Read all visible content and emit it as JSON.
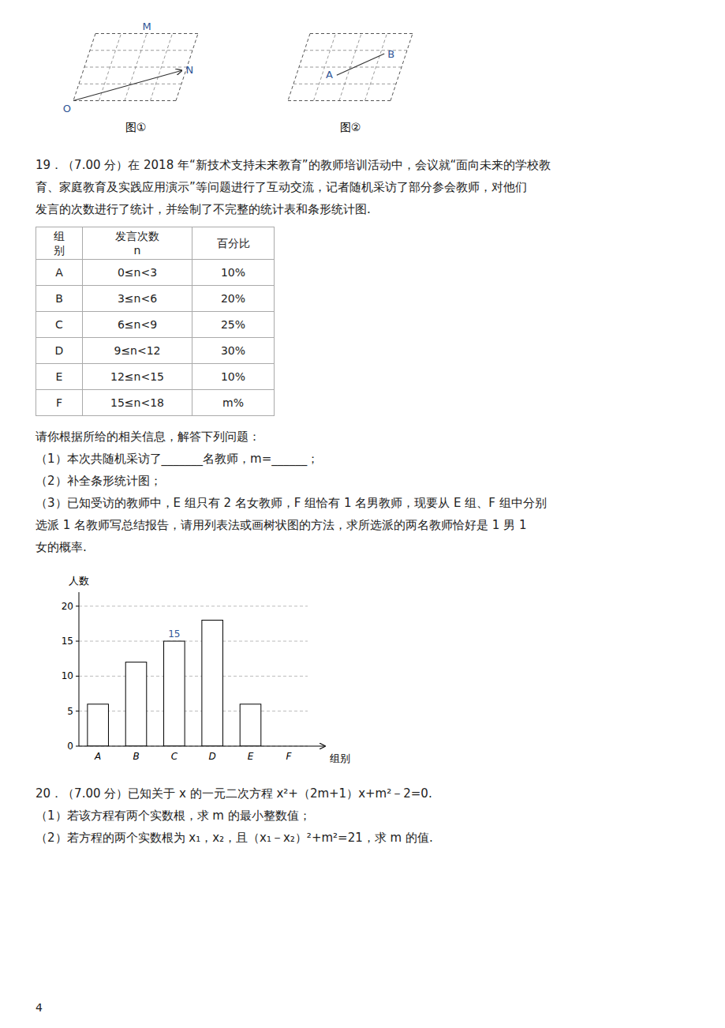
{
  "chart_data": {
    "type": "bar",
    "categories": [
      "A",
      "B",
      "C",
      "D",
      "E",
      "F"
    ],
    "values": [
      6,
      12,
      15,
      18,
      6,
      null
    ],
    "ylim": [
      0,
      22
    ],
    "yticks": [
      0,
      5,
      10,
      15,
      20
    ],
    "grid": true,
    "x_label": "组别",
    "y_label": "人数",
    "annotations": [
      {
        "text": "15",
        "x": "C",
        "y": 15
      }
    ]
  },
  "page": {
    "figures": [
      {
        "caption": "图①",
        "labels": [
          "M",
          "N",
          "O"
        ]
      },
      {
        "caption": "图②",
        "labels": [
          "A",
          "B"
        ]
      }
    ],
    "question_19": [
      "19．（7.00 分）在 2018 年“新技术支持未来教育”的教师培训活动中，会议就“面向未来的学校教",
      "育、家庭教育及实践应用演示”等问题进行了互动交流，记者随机采访了部分参会教师，对他们",
      "发言的次数进行了统计，并绘制了不完整的统计表和条形统计图."
    ],
    "table": {
      "header": [
        [
          "组",
          "别"
        ],
        [
          "发言次数",
          "n"
        ],
        [
          "百分比"
        ]
      ],
      "rows": [
        [
          "A",
          "0≤n<3",
          "10%"
        ],
        [
          "B",
          "3≤n<6",
          "20%"
        ],
        [
          "C",
          "6≤n<9",
          "25%"
        ],
        [
          "D",
          "9≤n<12",
          "30%"
        ],
        [
          "E",
          "12≤n<15",
          "10%"
        ],
        [
          "F",
          "15≤n<18",
          "m%"
        ]
      ]
    },
    "questions_19": [
      "请你根据所给的相关信息，解答下列问题：",
      "（1）本次共随机采访了_______名教师，m=______；",
      "（2）补全条形统计图；",
      "（3）已知受访的教师中，E 组只有 2 名女教师，F 组恰有 1 名男教师，现要从 E 组、F 组中分别",
      "选派 1 名教师写总结报告，请用列表法或画树状图的方法，求所选派的两名教师恰好是 1 男 1",
      "女的概率."
    ],
    "question_20": [
      "20．（7.00 分）已知关于 x 的一元二次方程 x²+（2m+1）x+m²－2=0.",
      "（1）若该方程有两个实数根，求 m 的最小整数值；",
      "（2）若方程的两个实数根为 x₁，x₂，且（x₁－x₂）²+m²=21，求 m 的值."
    ],
    "page_number": "4"
  }
}
